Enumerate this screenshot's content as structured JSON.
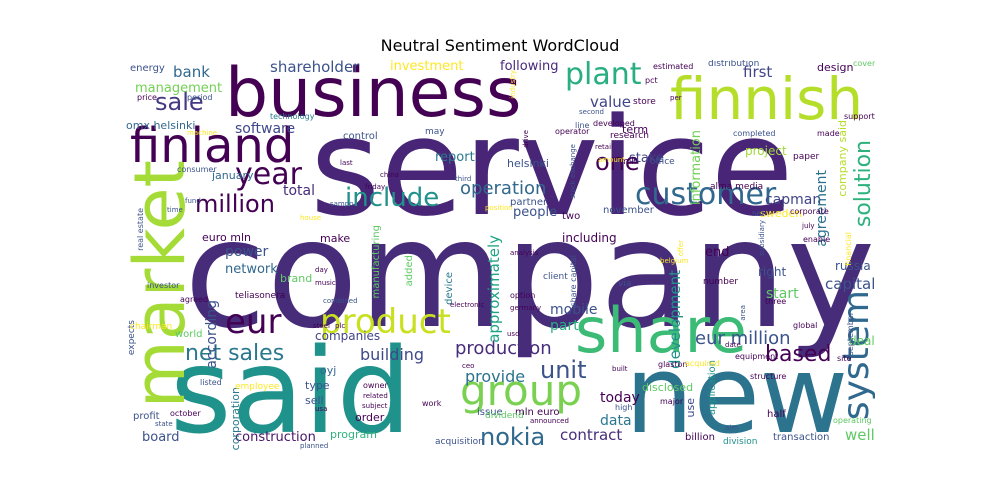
{
  "title": "Neutral Sentiment WordCloud",
  "words": [
    {
      "text": "company",
      "color": "#472c7a"
    },
    {
      "text": "service",
      "color": "#482576"
    },
    {
      "text": "said",
      "color": "#20928c"
    },
    {
      "text": "new",
      "color": "#2c738e"
    },
    {
      "text": "business",
      "color": "#440154"
    },
    {
      "text": "market",
      "color": "#a5db36"
    },
    {
      "text": "share",
      "color": "#3bbb75"
    },
    {
      "text": "finnish",
      "color": "#b5de2b"
    },
    {
      "text": "finland",
      "color": "#440154"
    },
    {
      "text": "group",
      "color": "#7ad151"
    },
    {
      "text": "product",
      "color": "#c8e020"
    },
    {
      "text": "eur",
      "color": "#440154"
    },
    {
      "text": "customer",
      "color": "#31688e"
    },
    {
      "text": "year",
      "color": "#440154"
    },
    {
      "text": "system",
      "color": "#31688e"
    },
    {
      "text": "include",
      "color": "#21918c"
    },
    {
      "text": "plant",
      "color": "#28ae80"
    },
    {
      "text": "million",
      "color": "#440154"
    },
    {
      "text": "sale",
      "color": "#443983"
    },
    {
      "text": "unit",
      "color": "#3b528b"
    },
    {
      "text": "nokia",
      "color": "#31688e"
    },
    {
      "text": "net sales",
      "color": "#2a788e"
    },
    {
      "text": "one",
      "color": "#440154"
    },
    {
      "text": "based",
      "color": "#440154"
    },
    {
      "text": "solution",
      "color": "#2db27d"
    },
    {
      "text": "eur million",
      "color": "#3b528b"
    },
    {
      "text": "operation",
      "color": "#31688e"
    },
    {
      "text": "production",
      "color": "#472d7b"
    },
    {
      "text": "shareholder",
      "color": "#3b528b"
    },
    {
      "text": "building",
      "color": "#3e4989"
    },
    {
      "text": "provide",
      "color": "#2c728e"
    },
    {
      "text": "well",
      "color": "#5ec962"
    },
    {
      "text": "value",
      "color": "#414487"
    },
    {
      "text": "capital",
      "color": "#3b528b"
    },
    {
      "text": "first",
      "color": "#414487"
    },
    {
      "text": "contract",
      "color": "#472d7b"
    },
    {
      "text": "development",
      "color": "#21918c"
    },
    {
      "text": "approximately",
      "color": "#20a486"
    },
    {
      "text": "bank",
      "color": "#31688e"
    },
    {
      "text": "software",
      "color": "#3e4989"
    },
    {
      "text": "according",
      "color": "#3b528b"
    },
    {
      "text": "total",
      "color": "#472d7b"
    },
    {
      "text": "power",
      "color": "#3b528b"
    },
    {
      "text": "network",
      "color": "#31688e"
    },
    {
      "text": "mobile",
      "color": "#3b528b"
    },
    {
      "text": "part",
      "color": "#28ae80"
    },
    {
      "text": "start",
      "color": "#5ec962"
    },
    {
      "text": "capman",
      "color": "#414487"
    },
    {
      "text": "agreement",
      "color": "#2c728e"
    },
    {
      "text": "today",
      "color": "#440154"
    },
    {
      "text": "data",
      "color": "#2a788e"
    },
    {
      "text": "construction",
      "color": "#481467"
    },
    {
      "text": "board",
      "color": "#3b528b"
    },
    {
      "text": "program",
      "color": "#2db27d"
    },
    {
      "text": "investment",
      "color": "#fde725"
    },
    {
      "text": "following",
      "color": "#482878"
    },
    {
      "text": "management",
      "color": "#73d056"
    },
    {
      "text": "stake",
      "color": "#414487"
    },
    {
      "text": "people",
      "color": "#3b528b"
    },
    {
      "text": "report",
      "color": "#2a788e"
    },
    {
      "text": "information",
      "color": "#73d056"
    },
    {
      "text": "end",
      "color": "#440154"
    },
    {
      "text": "project",
      "color": "#a0da39"
    },
    {
      "text": "january",
      "color": "#31688e"
    },
    {
      "text": "euro mln",
      "color": "#440154"
    },
    {
      "text": "make",
      "color": "#440154"
    },
    {
      "text": "including",
      "color": "#440154"
    },
    {
      "text": "right",
      "color": "#3b528b"
    },
    {
      "text": "russia",
      "color": "#3b528b"
    },
    {
      "text": "energy",
      "color": "#3b528b"
    },
    {
      "text": "design",
      "color": "#440154"
    },
    {
      "text": "omx helsinki",
      "color": "#31688e"
    },
    {
      "text": "helsinki",
      "color": "#3b528b"
    },
    {
      "text": "term",
      "color": "#440154"
    },
    {
      "text": "corporation",
      "color": "#2a788e"
    },
    {
      "text": "companies",
      "color": "#414487"
    },
    {
      "text": "manufacturing",
      "color": "#5ec962"
    },
    {
      "text": "oyj",
      "color": "#31688e"
    },
    {
      "text": "brand",
      "color": "#5ec962"
    },
    {
      "text": "type",
      "color": "#3b528b"
    },
    {
      "text": "sell",
      "color": "#3b528b"
    },
    {
      "text": "order",
      "color": "#440154"
    },
    {
      "text": "issue",
      "color": "#3b528b"
    },
    {
      "text": "mln euro",
      "color": "#440154"
    },
    {
      "text": "deal",
      "color": "#5ec962"
    },
    {
      "text": "sweden",
      "color": "#fde725"
    },
    {
      "text": "company said",
      "color": "#b5de2b"
    },
    {
      "text": "alma media",
      "color": "#440154"
    },
    {
      "text": "teliasonera",
      "color": "#440154"
    },
    {
      "text": "control",
      "color": "#3b528b"
    },
    {
      "text": "research",
      "color": "#440154"
    },
    {
      "text": "office",
      "color": "#3b528b"
    },
    {
      "text": "mill",
      "color": "#440154"
    },
    {
      "text": "disclosed",
      "color": "#5ec962"
    },
    {
      "text": "use",
      "color": "#3e4989"
    },
    {
      "text": "half",
      "color": "#440154"
    },
    {
      "text": "billion",
      "color": "#440154"
    },
    {
      "text": "transaction",
      "color": "#3b528b"
    },
    {
      "text": "acquisition",
      "color": "#3b528b"
    },
    {
      "text": "division",
      "color": "#21918c"
    },
    {
      "text": "application",
      "color": "#21918c"
    },
    {
      "text": "profit",
      "color": "#3b528b"
    },
    {
      "text": "world",
      "color": "#5ec962"
    },
    {
      "text": "expects",
      "color": "#3b528b"
    },
    {
      "text": "chairman",
      "color": "#fde725"
    },
    {
      "text": "agreed",
      "color": "#440154"
    },
    {
      "text": "investor",
      "color": "#3b528b"
    },
    {
      "text": "real estate",
      "color": "#3b528b"
    },
    {
      "text": "two",
      "color": "#440154"
    },
    {
      "text": "partner",
      "color": "#3b528b"
    },
    {
      "text": "november",
      "color": "#3b528b"
    },
    {
      "text": "device",
      "color": "#2a788e"
    },
    {
      "text": "added",
      "color": "#5ec962"
    },
    {
      "text": "client",
      "color": "#3b528b"
    },
    {
      "text": "via",
      "color": "#3b528b"
    },
    {
      "text": "number",
      "color": "#440154"
    },
    {
      "text": "operator",
      "color": "#440154"
    },
    {
      "text": "store",
      "color": "#440154"
    },
    {
      "text": "pct",
      "color": "#440154"
    },
    {
      "text": "distribution",
      "color": "#3b528b"
    },
    {
      "text": "cover",
      "color": "#5ec962"
    },
    {
      "text": "support",
      "color": "#440154"
    },
    {
      "text": "made",
      "color": "#440154"
    },
    {
      "text": "paper",
      "color": "#440154"
    },
    {
      "text": "completed",
      "color": "#3b528b"
    },
    {
      "text": "line",
      "color": "#3b528b"
    },
    {
      "text": "second",
      "color": "#3b528b"
    },
    {
      "text": "stock exchange",
      "color": "#3b528b"
    },
    {
      "text": "may",
      "color": "#3b528b"
    },
    {
      "text": "technology",
      "color": "#2a788e"
    },
    {
      "text": "price",
      "color": "#440154"
    },
    {
      "text": "period",
      "color": "#3b528b"
    },
    {
      "text": "machine",
      "color": "#fde725"
    },
    {
      "text": "consumer",
      "color": "#3b528b"
    },
    {
      "text": "fund",
      "color": "#3b528b"
    },
    {
      "text": "time",
      "color": "#3b528b"
    },
    {
      "text": "sampo",
      "color": "#3b528b"
    },
    {
      "text": "friday",
      "color": "#440154"
    },
    {
      "text": "last",
      "color": "#440154"
    },
    {
      "text": "china",
      "color": "#440154"
    },
    {
      "text": "third",
      "color": "#3b528b"
    },
    {
      "text": "electronic",
      "color": "#440154"
    },
    {
      "text": "house",
      "color": "#fde725"
    },
    {
      "text": "combined",
      "color": "#3b528b"
    },
    {
      "text": "music",
      "color": "#440154"
    },
    {
      "text": "day",
      "color": "#440154"
    },
    {
      "text": "usd",
      "color": "#440154"
    },
    {
      "text": "steel",
      "color": "#440154"
    },
    {
      "text": "plc",
      "color": "#440154"
    },
    {
      "text": "employee",
      "color": "#fde725"
    },
    {
      "text": "listed",
      "color": "#3b528b"
    },
    {
      "text": "usa",
      "color": "#440154"
    },
    {
      "text": "subject",
      "color": "#440154"
    },
    {
      "text": "related",
      "color": "#440154"
    },
    {
      "text": "owner",
      "color": "#440154"
    },
    {
      "text": "work",
      "color": "#440154"
    },
    {
      "text": "dividend",
      "color": "#5ec962"
    },
    {
      "text": "announced",
      "color": "#440154"
    },
    {
      "text": "planned",
      "color": "#3b528b"
    },
    {
      "text": "october",
      "color": "#440154"
    },
    {
      "text": "state",
      "color": "#3b528b"
    },
    {
      "text": "major",
      "color": "#440154"
    },
    {
      "text": "high",
      "color": "#3b528b"
    },
    {
      "text": "glaston",
      "color": "#440154"
    },
    {
      "text": "acquired",
      "color": "#fde725"
    },
    {
      "text": "equipment",
      "color": "#440154"
    },
    {
      "text": "structure",
      "color": "#440154"
    },
    {
      "text": "operating",
      "color": "#5ec962"
    },
    {
      "text": "global",
      "color": "#440154"
    },
    {
      "text": "september",
      "color": "#3b528b"
    },
    {
      "text": "site",
      "color": "#440154"
    },
    {
      "text": "three",
      "color": "#440154"
    },
    {
      "text": "financial",
      "color": "#fde725"
    },
    {
      "text": "enable",
      "color": "#440154"
    },
    {
      "text": "july",
      "color": "#440154"
    },
    {
      "text": "corporate",
      "color": "#440154"
    },
    {
      "text": "set",
      "color": "#3b528b"
    },
    {
      "text": "subsidiary",
      "color": "#3b528b"
    },
    {
      "text": "belgium",
      "color": "#fde725"
    },
    {
      "text": "germany",
      "color": "#440154"
    },
    {
      "text": "option",
      "color": "#440154"
    },
    {
      "text": "analysis",
      "color": "#440154"
    },
    {
      "text": "share capital",
      "color": "#3b528b"
    },
    {
      "text": "estimated",
      "color": "#440154"
    },
    {
      "text": "industry",
      "color": "#fde725"
    },
    {
      "text": "drive",
      "color": "#440154"
    },
    {
      "text": "position",
      "color": "#fde725"
    },
    {
      "text": "amount",
      "color": "#fde725"
    },
    {
      "text": "retail",
      "color": "#440154"
    },
    {
      "text": "per",
      "color": "#440154"
    },
    {
      "text": "developed",
      "color": "#440154"
    },
    {
      "text": "built",
      "color": "#440154"
    },
    {
      "text": "ceo",
      "color": "#440154"
    },
    {
      "text": "date",
      "color": "#440154"
    },
    {
      "text": "aim",
      "color": "#3b528b"
    },
    {
      "text": "area",
      "color": "#3b528b"
    },
    {
      "text": "offer",
      "color": "#fde725"
    }
  ]
}
